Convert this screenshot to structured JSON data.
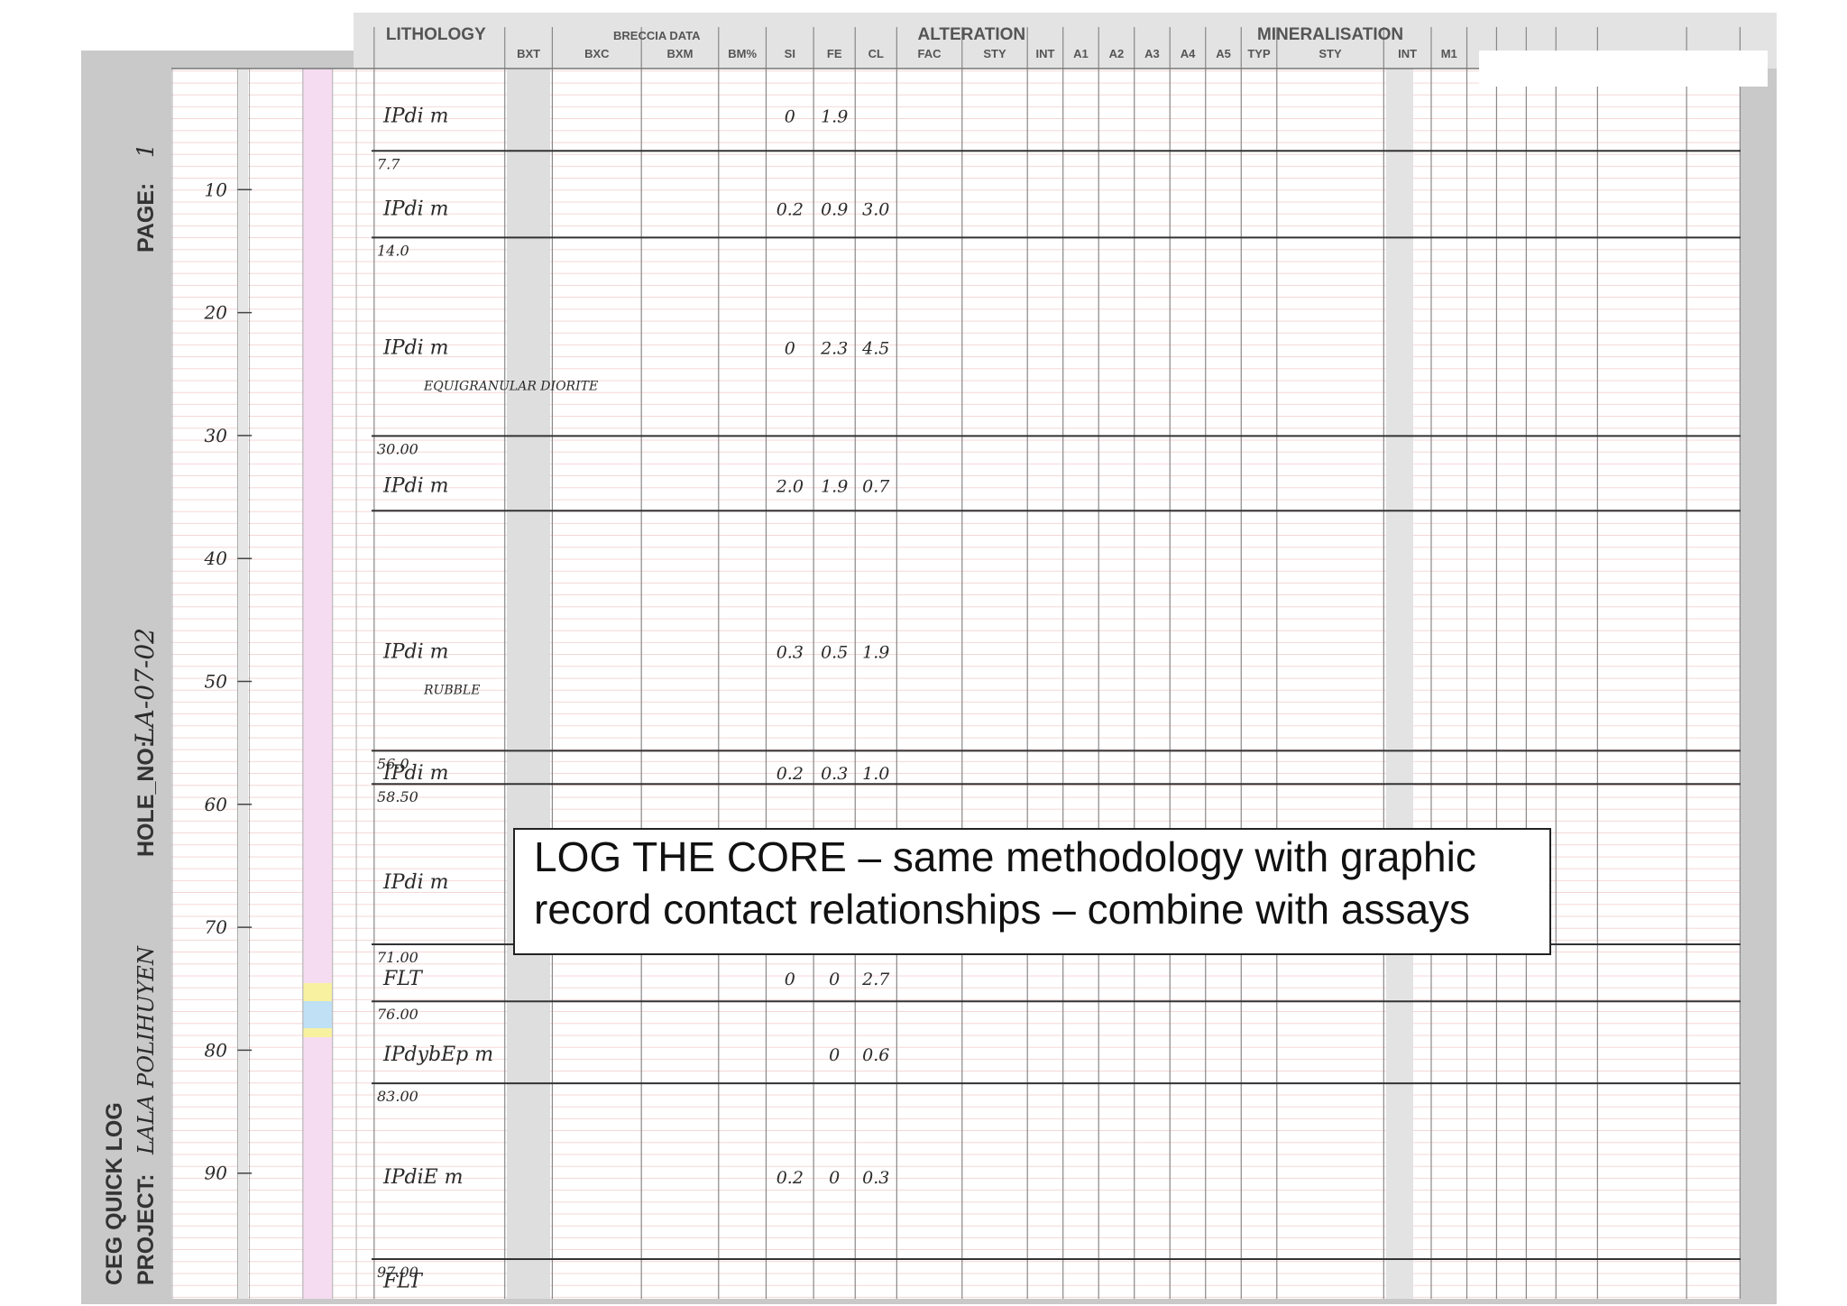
{
  "sheet": {
    "title": "CEG QUICK LOG",
    "project_label": "PROJECT:",
    "project": "LALA POLIHUYEN",
    "hole_label": "HOLE_NO:",
    "hole": "LA-07-02",
    "page_label": "PAGE:",
    "page": "1"
  },
  "header": {
    "groups": [
      "LITHOLOGY",
      "BRECCIA DATA",
      "ALTERATION",
      "MINERALISATION"
    ],
    "columns": [
      "BXT",
      "BXC",
      "BXM",
      "BM%",
      "SI",
      "FE",
      "CL",
      "FAC",
      "STY",
      "INT",
      "A1",
      "A2",
      "A3",
      "A4",
      "A5",
      "TYP",
      "STY",
      "INT",
      "M1"
    ]
  },
  "depths": [
    10,
    20,
    30,
    40,
    50,
    60,
    70,
    80,
    90
  ],
  "intervals": [
    {
      "lith": "IPdi m",
      "si": "0",
      "fe": "1.9"
    },
    {
      "from": "7.7",
      "lith": "IPdi m",
      "si": "0.2",
      "fe": "0.9",
      "cl": "3.0"
    },
    {
      "from": "14.0",
      "lith": "IPdi m",
      "note": "EQUIGRANULAR DIORITE",
      "si": "0",
      "fe": "2.3",
      "cl": "4.5"
    },
    {
      "from": "30.00",
      "lith": "IPdi m",
      "si": "2.0",
      "fe": "1.9",
      "cl": "0.7"
    },
    {
      "lith": "IPdi m",
      "note": "RUBBLE",
      "si": "0.3",
      "fe": "0.5",
      "cl": "1.9"
    },
    {
      "from": "56.0",
      "lith": "IPdi m",
      "si": "0.2",
      "fe": "0.3",
      "cl": "1.0"
    },
    {
      "from": "58.50",
      "lith": "IPdi m"
    },
    {
      "from": "71.00",
      "lith": "FLT",
      "si": "0",
      "fe": "0",
      "cl": "2.7"
    },
    {
      "from": "76.00",
      "lith": "IPdybEp m",
      "fe": "0",
      "cl": "0.6"
    },
    {
      "from": "83.00",
      "lith": "IPdiE m",
      "si": "0.2",
      "fe": "0",
      "cl": "0.3"
    },
    {
      "from": "97.00",
      "lith": "FLT"
    }
  ],
  "callout": {
    "lines": [
      "LOG THE CORE – same methodology with graphic",
      "record contact relationships – combine with assays"
    ]
  }
}
